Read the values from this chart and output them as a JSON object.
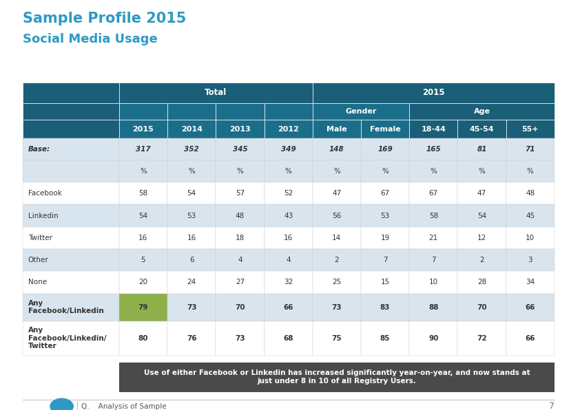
{
  "title_line1": "Sample Profile 2015",
  "title_line2": "Social Media Usage",
  "title_color": "#2E9AC4",
  "bg_color": "#FFFFFF",
  "header_dark": "#1A5E78",
  "header_mid": "#1B6E8A",
  "highlight_green": "#8DB04A",
  "stripe_light": "#D9E5EE",
  "stripe_white": "#FFFFFF",
  "footer_bg": "#4A4A4A",
  "footer_text": "Use of either Facebook or Linkedin has increased significantly year-on-year, and now stands at\njust under 8 in 10 of all Registry Users.",
  "columns": [
    "",
    "2015",
    "2014",
    "2013",
    "2012",
    "Male",
    "Female",
    "18-44",
    "45-54",
    "55+"
  ],
  "rows": [
    {
      "label": "Base:",
      "values": [
        "317",
        "352",
        "345",
        "349",
        "148",
        "169",
        "165",
        "81",
        "71"
      ],
      "style": "base",
      "italic": true,
      "highlight_col": -1
    },
    {
      "label": "",
      "values": [
        "%",
        "%",
        "%",
        "%",
        "%",
        "%",
        "%",
        "%",
        "%"
      ],
      "style": "percent",
      "italic": false,
      "highlight_col": -1
    },
    {
      "label": "Facebook",
      "values": [
        "58",
        "54",
        "57",
        "52",
        "47",
        "67",
        "67",
        "47",
        "48"
      ],
      "style": "normal",
      "italic": false,
      "highlight_col": -1
    },
    {
      "label": "Linkedin",
      "values": [
        "54",
        "53",
        "48",
        "43",
        "56",
        "53",
        "58",
        "54",
        "45"
      ],
      "style": "normal",
      "italic": false,
      "highlight_col": -1
    },
    {
      "label": "Twitter",
      "values": [
        "16",
        "16",
        "18",
        "16",
        "14",
        "19",
        "21",
        "12",
        "10"
      ],
      "style": "normal",
      "italic": false,
      "highlight_col": -1
    },
    {
      "label": "Other",
      "values": [
        "5",
        "6",
        "4",
        "4",
        "2",
        "7",
        "7",
        "2",
        "3"
      ],
      "style": "normal",
      "italic": false,
      "highlight_col": -1
    },
    {
      "label": "None",
      "values": [
        "20",
        "24",
        "27",
        "32",
        "25",
        "15",
        "10",
        "28",
        "34"
      ],
      "style": "normal",
      "italic": false,
      "highlight_col": -1
    },
    {
      "label": "Any\nFacebook/Linkedin",
      "values": [
        "79",
        "73",
        "70",
        "66",
        "73",
        "83",
        "88",
        "70",
        "66"
      ],
      "style": "bold",
      "italic": false,
      "highlight_col": 1
    },
    {
      "label": "Any\nFacebook/Linkedin/\nTwitter",
      "values": [
        "80",
        "76",
        "73",
        "68",
        "75",
        "85",
        "90",
        "72",
        "66"
      ],
      "style": "bold",
      "italic": false,
      "highlight_col": -1
    }
  ],
  "page_number": "7",
  "question_label": "Q.    Analysis of Sample"
}
